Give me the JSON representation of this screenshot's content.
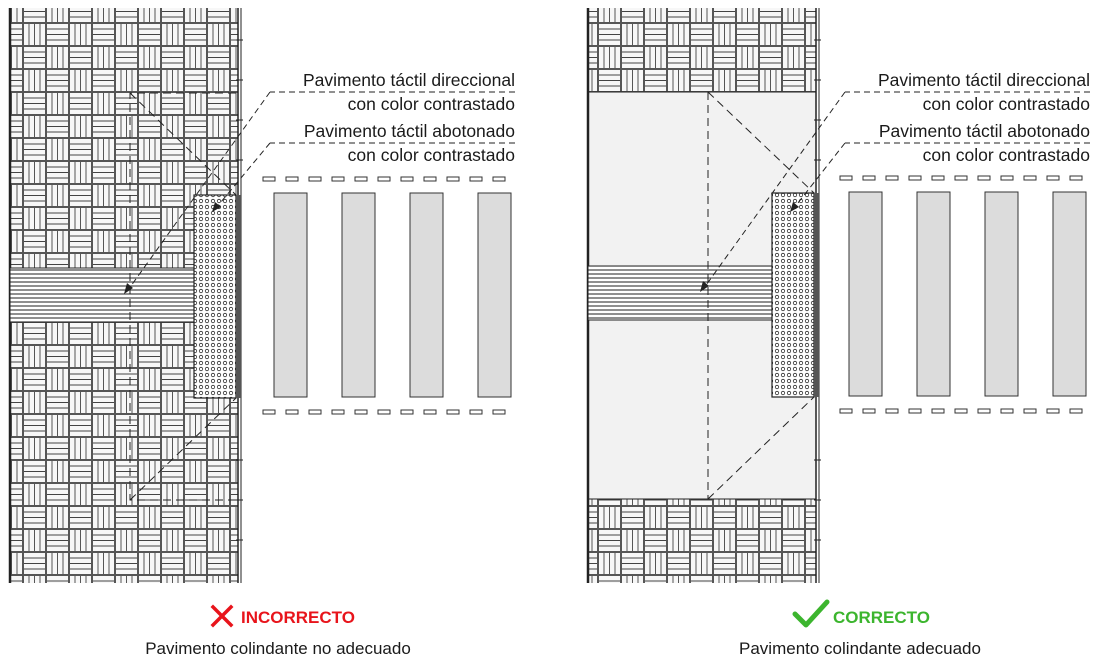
{
  "colors": {
    "incorrect": "#e8141b",
    "correct": "#3cb52e",
    "line": "#2a2a2a",
    "plain_floor": "#f2f2f2",
    "crossing_stripe": "#dcdcdc",
    "pattern_bg": "#f7f7f7"
  },
  "panels": {
    "left": {
      "label_directional_1": "Pavimento táctil direccional",
      "label_directional_2": "con color contrastado",
      "label_button_1": "Pavimento táctil abotonado",
      "label_button_2": "con color contrastado",
      "verdict": "INCORRECTO",
      "verdict_icon": "cross-icon",
      "caption": "Pavimento colindante no adecuado"
    },
    "right": {
      "label_directional_1": "Pavimento táctil direccional",
      "label_directional_2": "con color contrastado",
      "label_button_1": "Pavimento táctil abotonado",
      "label_button_2": "con color contrastado",
      "verdict": "CORRECTO",
      "verdict_icon": "check-icon",
      "caption": "Pavimento colindante adecuado"
    }
  }
}
